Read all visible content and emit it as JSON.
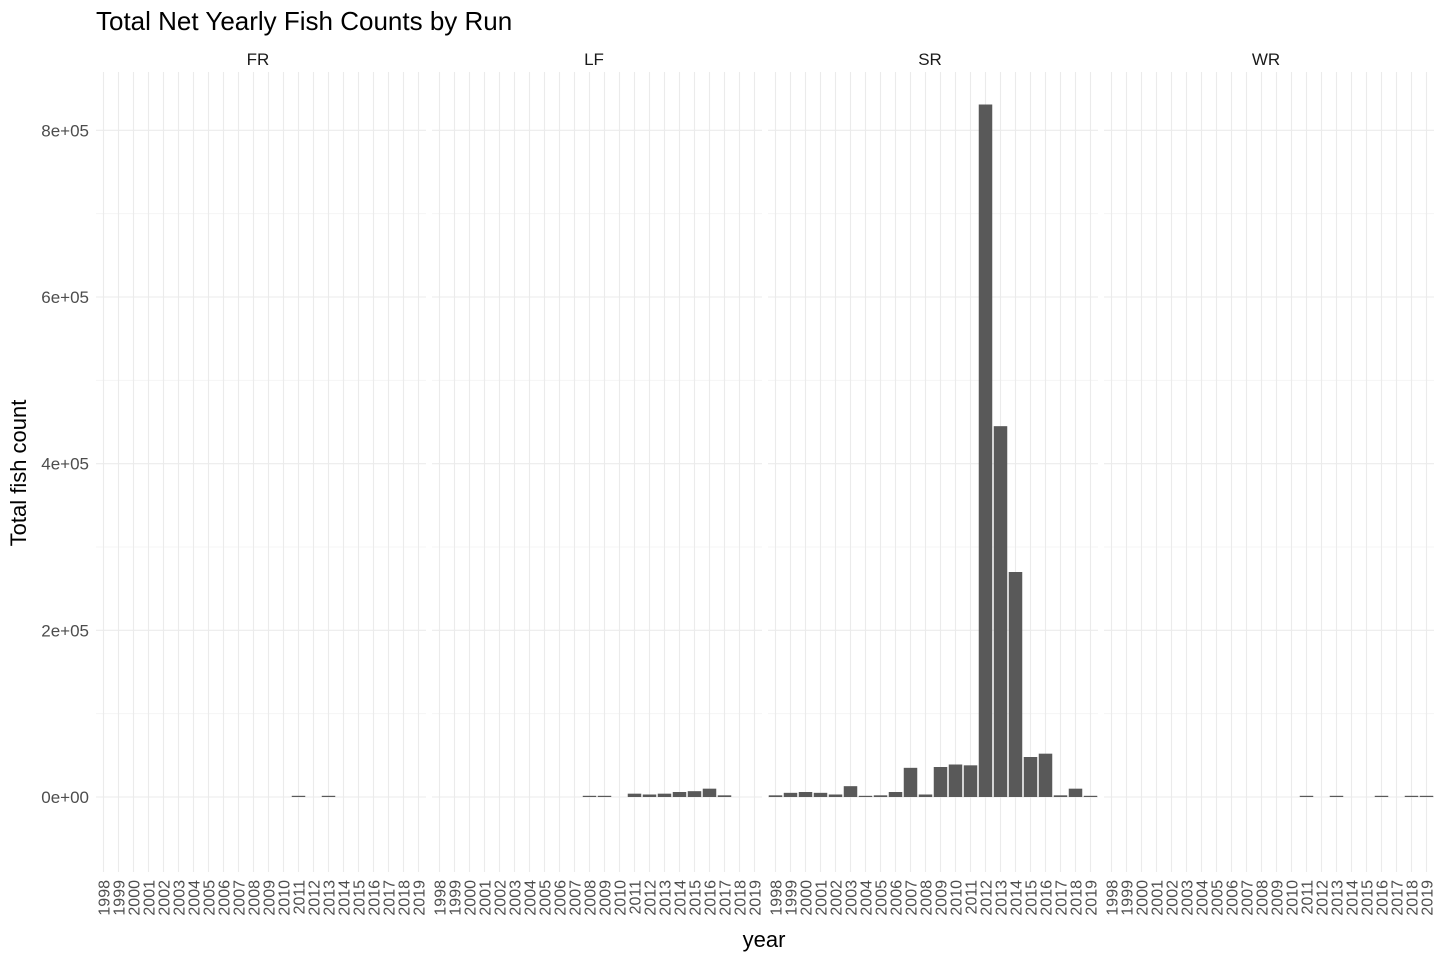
{
  "chart_data": {
    "type": "bar",
    "title": "Total Net Yearly Fish Counts by Run",
    "xlabel": "year",
    "ylabel": "Total fish count",
    "ylim": [
      -90000,
      870000
    ],
    "yticks": [
      0,
      200000,
      400000,
      600000,
      800000
    ],
    "ytick_labels": [
      "0e+00",
      "2e+05",
      "4e+05",
      "6e+05",
      "8e+05"
    ],
    "categories": [
      "1998",
      "1999",
      "2000",
      "2001",
      "2002",
      "2003",
      "2004",
      "2005",
      "2006",
      "2007",
      "2008",
      "2009",
      "2010",
      "2011",
      "2012",
      "2013",
      "2014",
      "2015",
      "2016",
      "2017",
      "2018",
      "2019"
    ],
    "grid": true,
    "bar_color": "#595959",
    "facets": [
      {
        "name": "FR",
        "values": [
          null,
          null,
          null,
          null,
          null,
          null,
          null,
          null,
          null,
          null,
          null,
          null,
          null,
          500,
          null,
          500,
          null,
          null,
          null,
          null,
          null,
          null
        ]
      },
      {
        "name": "LF",
        "values": [
          null,
          null,
          null,
          null,
          null,
          null,
          null,
          null,
          null,
          null,
          1000,
          800,
          null,
          4000,
          3000,
          4000,
          6000,
          7000,
          10000,
          2000,
          null,
          null
        ]
      },
      {
        "name": "SR",
        "values": [
          2000,
          5000,
          6000,
          5000,
          3000,
          13000,
          1000,
          2000,
          6000,
          35000,
          3000,
          36000,
          39000,
          38000,
          831000,
          445000,
          270000,
          48000,
          52000,
          2000,
          10000,
          1000
        ]
      },
      {
        "name": "WR",
        "values": [
          null,
          null,
          null,
          null,
          null,
          null,
          null,
          null,
          null,
          null,
          null,
          null,
          null,
          300,
          null,
          300,
          null,
          null,
          300,
          null,
          300,
          300
        ]
      }
    ]
  }
}
